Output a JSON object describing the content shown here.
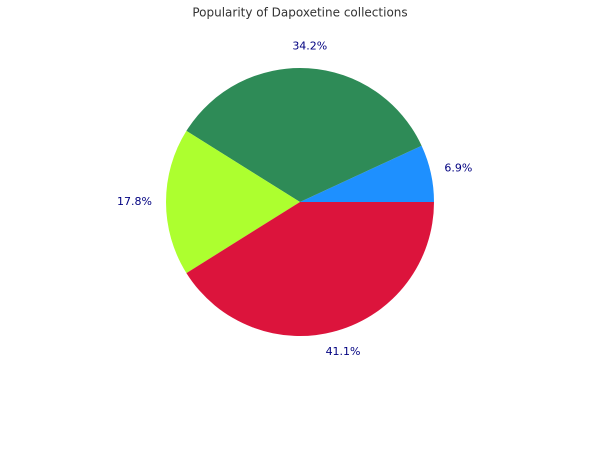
{
  "chart_data": {
    "type": "pie",
    "title": "Popularity of Dapoxetine collections",
    "values": [
      6.9,
      34.2,
      17.8,
      41.1
    ],
    "value_labels": [
      "6.9%",
      "34.2%",
      "17.8%",
      "41.1%"
    ],
    "colors": [
      "#1e90ff",
      "#2e8b57",
      "#adff2f",
      "#dc143c"
    ],
    "start_angle": 0,
    "direction": "counterclockwise"
  }
}
